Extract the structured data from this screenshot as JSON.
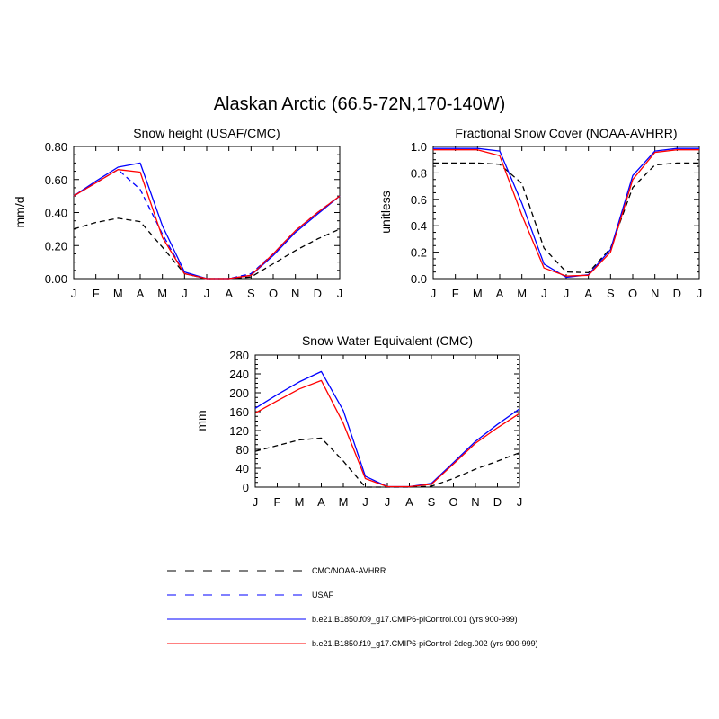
{
  "figure_title": "Alaskan Arctic (66.5-72N,170-140W)",
  "months": [
    "J",
    "F",
    "M",
    "A",
    "M",
    "J",
    "J",
    "A",
    "S",
    "O",
    "N",
    "D",
    "J"
  ],
  "styles": {
    "obs": {
      "color": "#000000",
      "dash": "dashed"
    },
    "usaf": {
      "color": "#0000ff",
      "dash": "dashed"
    },
    "f09": {
      "color": "#0000ff",
      "dash": "solid"
    },
    "f19": {
      "color": "#ff0000",
      "dash": "solid"
    }
  },
  "legend": {
    "obs": "CMC/NOAA-AVHRR",
    "usaf": "USAF",
    "f09": "b.e21.B1850.f09_g17.CMIP6-piControl.001 (yrs 900-999)",
    "f19": "b.e21.B1850.f19_g17.CMIP6-piControl-2deg.002 (yrs 900-999)"
  },
  "chart_data": [
    {
      "type": "line",
      "title": "Snow height (USAF/CMC)",
      "ylabel": "mm/d",
      "ylim": [
        0,
        0.8
      ],
      "yticks": [
        "0.00",
        "0.20",
        "0.40",
        "0.60",
        "0.80"
      ],
      "x": [
        "J",
        "F",
        "M",
        "A",
        "M",
        "J",
        "J",
        "A",
        "S",
        "O",
        "N",
        "D",
        "J"
      ],
      "series": [
        {
          "key": "obs",
          "values": [
            0.3,
            0.34,
            0.365,
            0.345,
            0.19,
            0.03,
            0.0,
            0.0,
            0.01,
            0.09,
            0.17,
            0.24,
            0.3
          ]
        },
        {
          "key": "usaf",
          "values": [
            0.5,
            0.58,
            0.66,
            0.54,
            0.27,
            0.03,
            0.0,
            0.0,
            0.03,
            0.15,
            0.29,
            0.4,
            0.5
          ]
        },
        {
          "key": "f09",
          "values": [
            0.5,
            0.59,
            0.675,
            0.7,
            0.32,
            0.04,
            0.0,
            0.0,
            0.02,
            0.14,
            0.28,
            0.39,
            0.5
          ]
        },
        {
          "key": "f19",
          "values": [
            0.5,
            0.58,
            0.66,
            0.645,
            0.25,
            0.03,
            0.0,
            0.0,
            0.02,
            0.15,
            0.29,
            0.4,
            0.5
          ]
        }
      ]
    },
    {
      "type": "line",
      "title": "Fractional Snow Cover (NOAA-AVHRR)",
      "ylabel": "unitless",
      "ylim": [
        0,
        1.0
      ],
      "yticks": [
        "0.0",
        "0.2",
        "0.4",
        "0.6",
        "0.8",
        "1.0"
      ],
      "x": [
        "J",
        "F",
        "M",
        "A",
        "M",
        "J",
        "J",
        "A",
        "S",
        "O",
        "N",
        "D",
        "J"
      ],
      "series": [
        {
          "key": "obs",
          "values": [
            0.875,
            0.875,
            0.875,
            0.865,
            0.72,
            0.23,
            0.05,
            0.045,
            0.23,
            0.69,
            0.86,
            0.875,
            0.875
          ]
        },
        {
          "key": "f09",
          "values": [
            0.985,
            0.985,
            0.985,
            0.965,
            0.57,
            0.11,
            0.01,
            0.03,
            0.22,
            0.78,
            0.965,
            0.985,
            0.985
          ]
        },
        {
          "key": "f19",
          "values": [
            0.975,
            0.975,
            0.975,
            0.93,
            0.48,
            0.08,
            0.02,
            0.025,
            0.2,
            0.75,
            0.955,
            0.975,
            0.975
          ]
        }
      ]
    },
    {
      "type": "line",
      "title": "Snow Water Equivalent (CMC)",
      "ylabel": "mm",
      "ylim": [
        0,
        280
      ],
      "yticks": [
        "0",
        "40",
        "80",
        "120",
        "160",
        "200",
        "240",
        "280"
      ],
      "x": [
        "J",
        "F",
        "M",
        "A",
        "M",
        "J",
        "J",
        "A",
        "S",
        "O",
        "N",
        "D",
        "J"
      ],
      "series": [
        {
          "key": "obs",
          "values": [
            76,
            88,
            100,
            104,
            55,
            0,
            0,
            0,
            2,
            18,
            38,
            55,
            73
          ]
        },
        {
          "key": "f09",
          "values": [
            167,
            196,
            223,
            245,
            162,
            23,
            1,
            1,
            8,
            52,
            97,
            133,
            166
          ]
        },
        {
          "key": "f19",
          "values": [
            157,
            183,
            208,
            226,
            135,
            18,
            1,
            1,
            6,
            49,
            93,
            126,
            156
          ]
        }
      ]
    }
  ]
}
